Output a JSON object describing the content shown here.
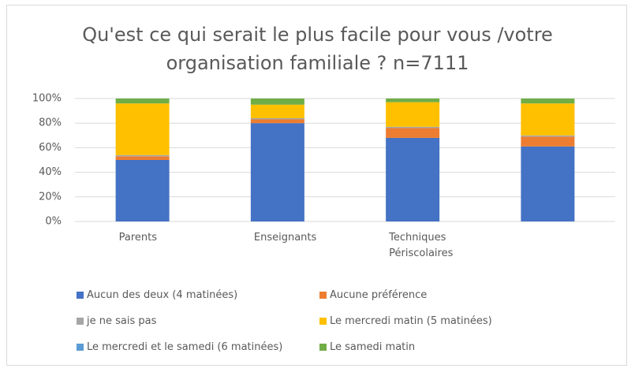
{
  "chart_data": {
    "type": "stacked_bar",
    "title": "Qu'est ce qui serait le plus facile pour vous /votre organisation familiale ? n=7111",
    "categories": [
      "Parents",
      "Enseignants",
      "Techniques Périscolaires",
      null
    ],
    "series": [
      {
        "name": "Aucun des deux (4 matinées)",
        "color": "#4472c4",
        "values": [
          50,
          80,
          68,
          61
        ]
      },
      {
        "name": "Aucune préférence",
        "color": "#ed7d31",
        "values": [
          3,
          3,
          8,
          8
        ]
      },
      {
        "name": "je ne sais pas",
        "color": "#a5a5a5",
        "values": [
          1,
          1,
          1,
          1
        ]
      },
      {
        "name": "Le mercredi matin (5 matinées)",
        "color": "#ffc000",
        "values": [
          42,
          11,
          20,
          26
        ]
      },
      {
        "name": "Le mercredi et le samedi (6 matinées)",
        "color": "#5b9bd5",
        "values": [
          0,
          0,
          0,
          0
        ]
      },
      {
        "name": "Le samedi matin",
        "color": "#70ad47",
        "values": [
          4,
          5,
          3,
          4
        ]
      }
    ],
    "ylim": [
      0,
      100
    ],
    "yticks": [
      {
        "value": 0,
        "label": "0%"
      },
      {
        "value": 20,
        "label": "20%"
      },
      {
        "value": 40,
        "label": "40%"
      },
      {
        "value": 60,
        "label": "60%"
      },
      {
        "value": 80,
        "label": "80%"
      },
      {
        "value": 100,
        "label": "100%"
      }
    ],
    "grid": true,
    "legend": "bottom"
  }
}
